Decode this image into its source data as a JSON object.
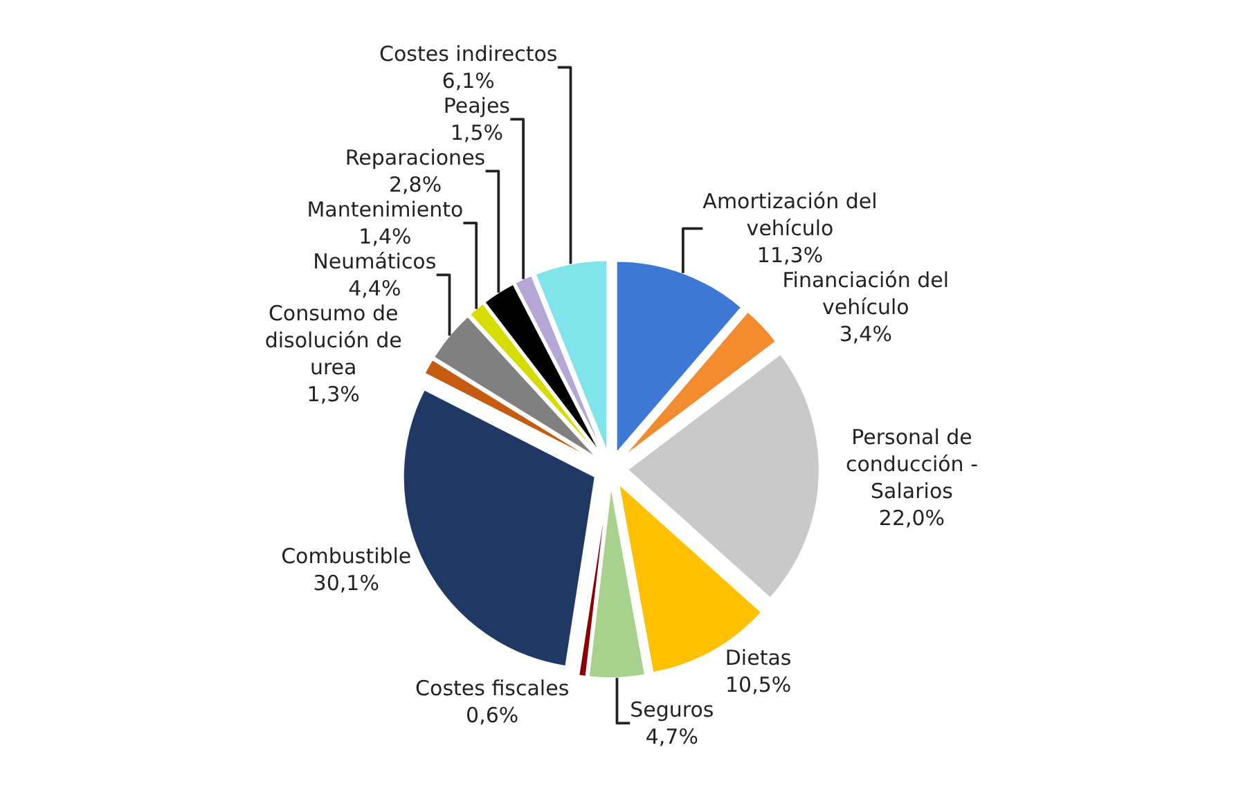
{
  "chart_data": {
    "type": "pie",
    "categories": [
      "Amortización del vehículo",
      "Financiación del vehículo",
      "Personal de conducción - Salarios",
      "Dietas",
      "Seguros",
      "Costes fiscales",
      "Combustible",
      "Consumo de disolución de urea",
      "Neumáticos",
      "Mantenimiento",
      "Reparaciones",
      "Peajes",
      "Costes indirectos"
    ],
    "values": [
      11.3,
      3.4,
      22.0,
      10.5,
      4.7,
      0.6,
      30.1,
      1.3,
      4.4,
      1.4,
      2.8,
      1.5,
      6.1
    ],
    "value_labels": [
      "11,3%",
      "3,4%",
      "22,0%",
      "10,5%",
      "4,7%",
      "0,6%",
      "30,1%",
      "1,3%",
      "4,4%",
      "1,4%",
      "2,8%",
      "1,5%",
      "6,1%"
    ],
    "colors": [
      "#3f77d4",
      "#f28a30",
      "#c9c9c9",
      "#ffc000",
      "#a9d18e",
      "#8b0000",
      "#203864",
      "#c55a11",
      "#808080",
      "#d4dc00",
      "#000000",
      "#b4a7d6",
      "#80e4ea"
    ],
    "legend": false
  }
}
